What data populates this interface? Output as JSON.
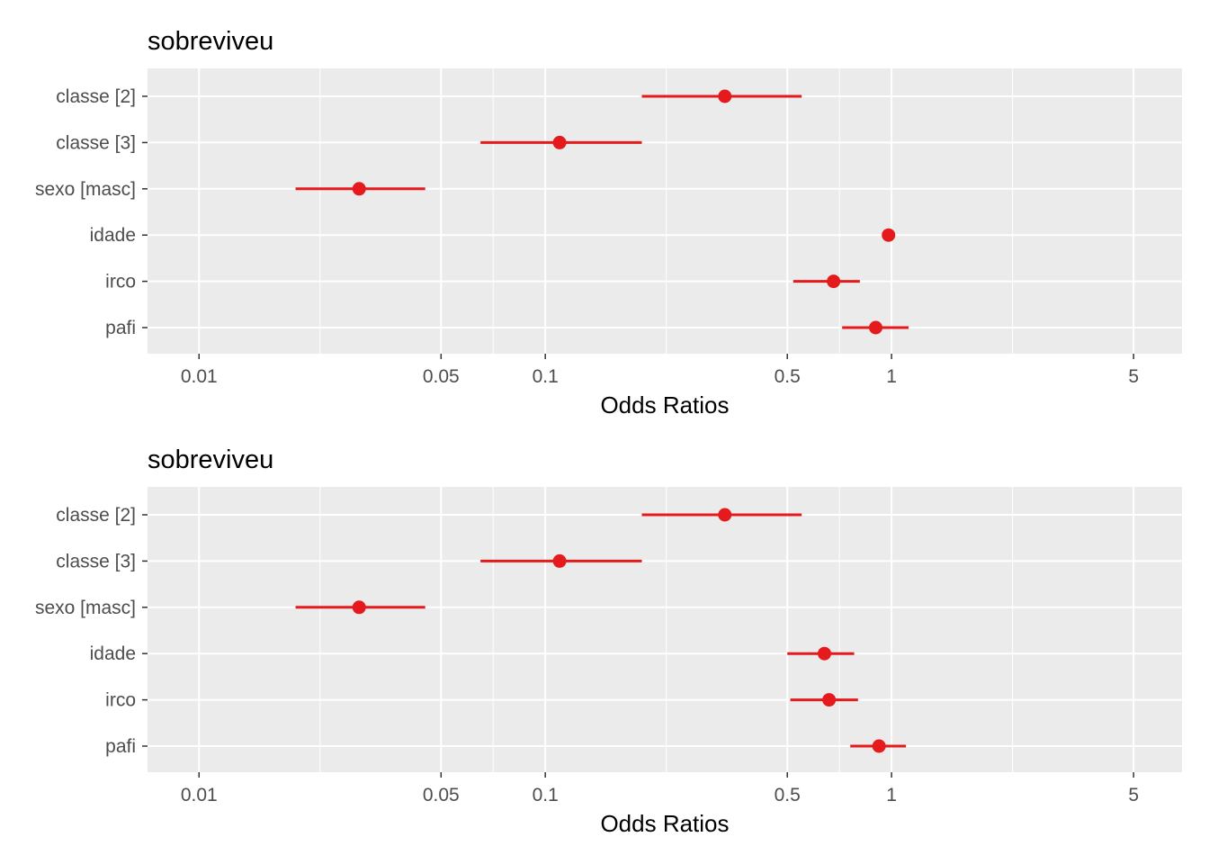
{
  "chart_data": [
    {
      "type": "forest",
      "title": "sobreviveu",
      "xlabel": "Odds Ratios",
      "x_scale": "log10",
      "xlim": [
        0.0071,
        6.9
      ],
      "x_ticks": [
        "0.01",
        "0.05",
        "0.1",
        "0.5",
        "1",
        "5"
      ],
      "x_tick_values": [
        0.01,
        0.05,
        0.1,
        0.5,
        1,
        5
      ],
      "grid": true,
      "terms": [
        "classe [2]",
        "classe [3]",
        "sexo [masc]",
        "idade",
        "irco",
        "pafi"
      ],
      "estimate": [
        0.33,
        0.11,
        0.029,
        0.98,
        0.68,
        0.9
      ],
      "conf_low": [
        0.19,
        0.065,
        0.019,
        0.98,
        0.52,
        0.72
      ],
      "conf_high": [
        0.55,
        0.19,
        0.045,
        0.98,
        0.81,
        1.12
      ],
      "color": "#e41a1c"
    },
    {
      "type": "forest",
      "title": "sobreviveu",
      "xlabel": "Odds Ratios",
      "x_scale": "log10",
      "xlim": [
        0.0071,
        6.9
      ],
      "x_ticks": [
        "0.01",
        "0.05",
        "0.1",
        "0.5",
        "1",
        "5"
      ],
      "x_tick_values": [
        0.01,
        0.05,
        0.1,
        0.5,
        1,
        5
      ],
      "grid": true,
      "terms": [
        "classe [2]",
        "classe [3]",
        "sexo [masc]",
        "idade",
        "irco",
        "pafi"
      ],
      "estimate": [
        0.33,
        0.11,
        0.029,
        0.64,
        0.66,
        0.92
      ],
      "conf_low": [
        0.19,
        0.065,
        0.019,
        0.5,
        0.51,
        0.76
      ],
      "conf_high": [
        0.55,
        0.19,
        0.045,
        0.78,
        0.8,
        1.1
      ],
      "color": "#e41a1c"
    }
  ]
}
